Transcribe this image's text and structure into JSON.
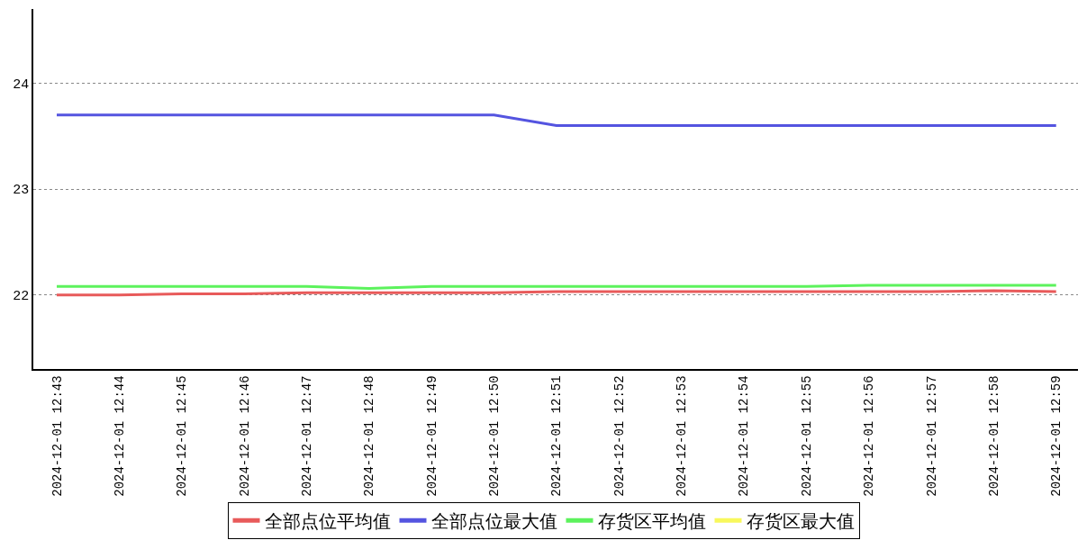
{
  "chart_data": {
    "type": "line",
    "categories": [
      "2024-12-01 12:43",
      "2024-12-01 12:44",
      "2024-12-01 12:45",
      "2024-12-01 12:46",
      "2024-12-01 12:47",
      "2024-12-01 12:48",
      "2024-12-01 12:49",
      "2024-12-01 12:50",
      "2024-12-01 12:51",
      "2024-12-01 12:52",
      "2024-12-01 12:53",
      "2024-12-01 12:54",
      "2024-12-01 12:55",
      "2024-12-01 12:56",
      "2024-12-01 12:57",
      "2024-12-01 12:58",
      "2024-12-01 12:59"
    ],
    "ylim": [
      21.3,
      24.7
    ],
    "yticks": [
      22,
      23,
      24
    ],
    "grid": "y",
    "legend": "bottom",
    "marker": "none",
    "line_style": "solid",
    "series": [
      {
        "name": "全部点位平均值",
        "color": "#e85a5a",
        "values": [
          22.0,
          22.0,
          22.01,
          22.01,
          22.02,
          22.02,
          22.02,
          22.02,
          22.03,
          22.03,
          22.03,
          22.03,
          22.03,
          22.03,
          22.03,
          22.04,
          22.03
        ]
      },
      {
        "name": "全部点位最大值",
        "color": "#5454e0",
        "values": [
          23.7,
          23.7,
          23.7,
          23.7,
          23.7,
          23.7,
          23.7,
          23.7,
          23.6,
          23.6,
          23.6,
          23.6,
          23.6,
          23.6,
          23.6,
          23.6,
          23.6
        ]
      },
      {
        "name": "存货区平均值",
        "color": "#5cf25c",
        "values": [
          22.08,
          22.08,
          22.08,
          22.08,
          22.08,
          22.06,
          22.08,
          22.08,
          22.08,
          22.08,
          22.08,
          22.08,
          22.08,
          22.09,
          22.09,
          22.09,
          22.09
        ]
      },
      {
        "name": "存货区最大值",
        "color": "#f8f85c",
        "values": [
          null,
          null,
          null,
          null,
          null,
          null,
          null,
          null,
          null,
          null,
          null,
          null,
          null,
          null,
          null,
          null,
          null
        ]
      }
    ]
  }
}
